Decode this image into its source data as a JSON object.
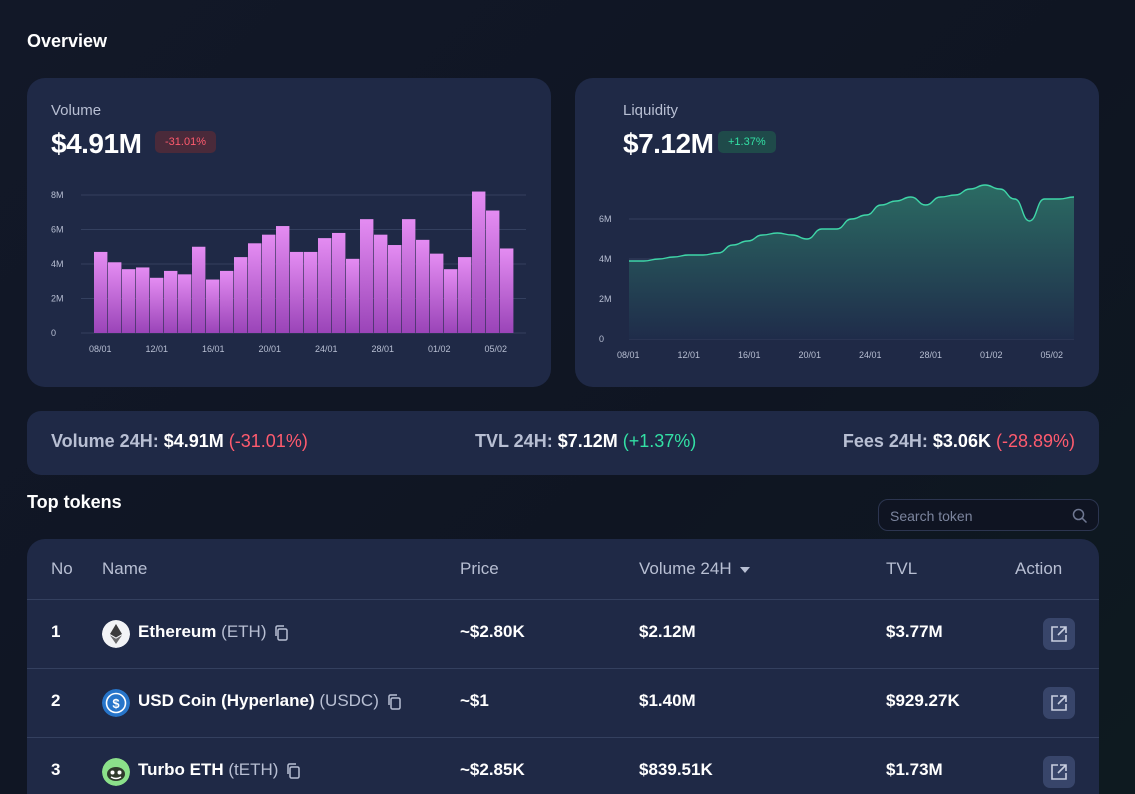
{
  "overview_title": "Overview",
  "volume_card": {
    "label": "Volume",
    "value": "$4.91M",
    "change": "-31.01%"
  },
  "liquidity_card": {
    "label": "Liquidity",
    "value": "$7.12M",
    "change": "+1.37%"
  },
  "chart_data": [
    {
      "type": "bar",
      "title": "",
      "color": "#d67ce8",
      "yticks": [
        "0",
        "2M",
        "4M",
        "6M",
        "8M"
      ],
      "ylim": [
        0,
        8
      ],
      "xtick_labels": [
        "08/01",
        "12/01",
        "16/01",
        "20/01",
        "24/01",
        "28/01",
        "01/02",
        "05/02"
      ],
      "values": [
        4.7,
        4.1,
        3.7,
        3.8,
        3.2,
        3.6,
        3.4,
        5.0,
        3.1,
        3.6,
        4.4,
        5.2,
        5.7,
        6.2,
        4.7,
        4.7,
        5.5,
        5.8,
        4.3,
        6.6,
        5.7,
        5.1,
        6.6,
        5.4,
        4.6,
        3.7,
        4.4,
        8.2,
        7.1,
        4.9
      ],
      "grid": true
    },
    {
      "type": "area",
      "title": "",
      "color": "#3fd6a8",
      "yticks": [
        "0",
        "2M",
        "4M",
        "6M"
      ],
      "ylim": [
        0,
        8
      ],
      "xtick_labels": [
        "08/01",
        "12/01",
        "16/01",
        "20/01",
        "24/01",
        "28/01",
        "01/02",
        "05/02"
      ],
      "values": [
        3.9,
        3.9,
        4.0,
        4.1,
        4.2,
        4.2,
        4.3,
        4.7,
        4.9,
        5.2,
        5.3,
        5.2,
        5.0,
        5.5,
        5.5,
        6.0,
        6.2,
        6.7,
        6.9,
        7.1,
        6.7,
        7.1,
        7.2,
        7.5,
        7.7,
        7.5,
        7.0,
        5.9,
        7.0,
        7.0,
        7.1
      ],
      "grid": true
    }
  ],
  "stats": {
    "volume_label": "Volume 24H:",
    "volume_value": "$4.91M",
    "volume_change": "(-31.01%)",
    "tvl_label": "TVL 24H:",
    "tvl_value": "$7.12M",
    "tvl_change": "(+1.37%)",
    "fees_label": "Fees 24H:",
    "fees_value": "$3.06K",
    "fees_change": "(-28.89%)"
  },
  "top_tokens_title": "Top tokens",
  "search": {
    "placeholder": "Search token"
  },
  "table": {
    "headers": {
      "no": "No",
      "name": "Name",
      "price": "Price",
      "volume": "Volume 24H",
      "tvl": "TVL",
      "action": "Action"
    },
    "rows": [
      {
        "no": "1",
        "name": "Ethereum",
        "symbol": "(ETH)",
        "price": "~$2.80K",
        "volume": "$2.12M",
        "tvl": "$3.77M",
        "icon": "ethereum-icon"
      },
      {
        "no": "2",
        "name": "USD Coin (Hyperlane)",
        "symbol": "(USDC)",
        "price": "~$1",
        "volume": "$1.40M",
        "tvl": "$929.27K",
        "icon": "usdc-icon"
      },
      {
        "no": "3",
        "name": "Turbo ETH",
        "symbol": "(tETH)",
        "price": "~$2.85K",
        "volume": "$839.51K",
        "tvl": "$1.73M",
        "icon": "turbo-eth-icon"
      }
    ]
  }
}
